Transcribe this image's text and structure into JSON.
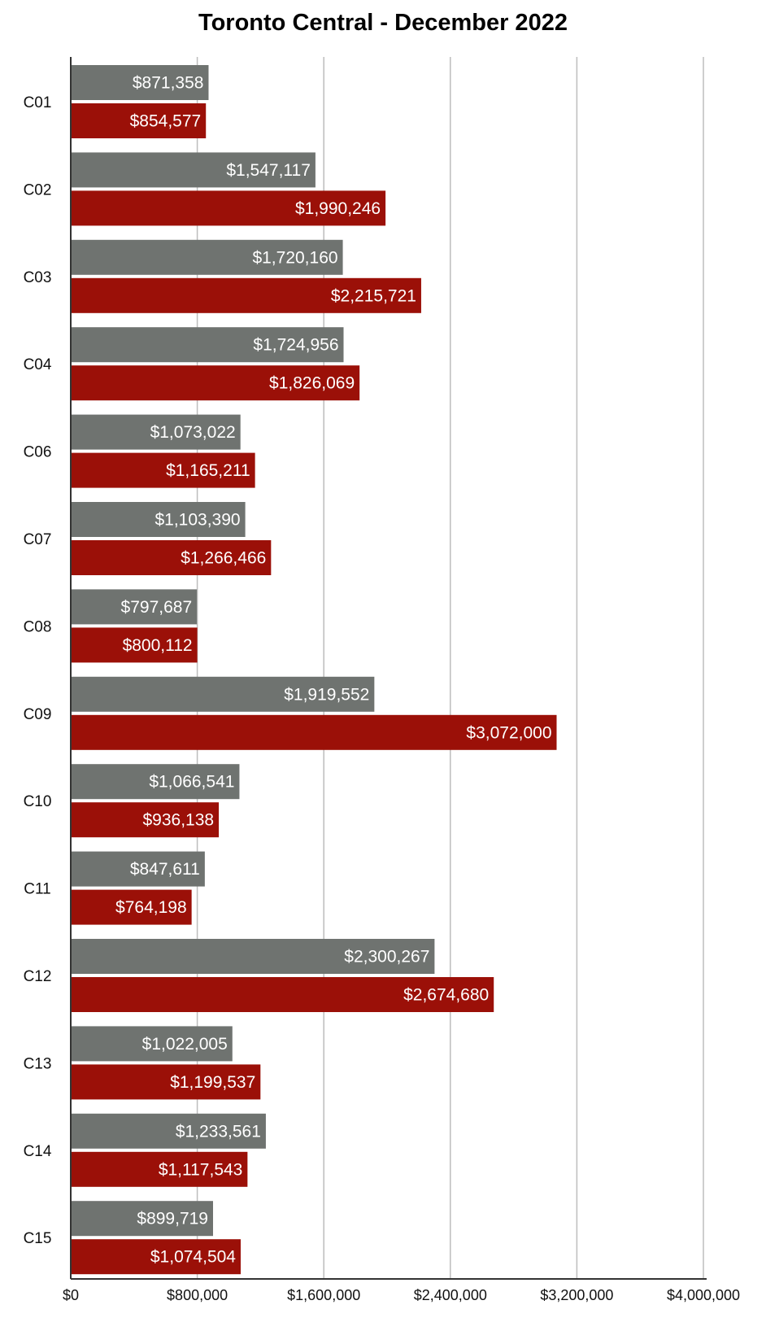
{
  "chart_data": {
    "type": "bar",
    "orientation": "horizontal",
    "title": "Toronto Central - December 2022",
    "xlabel": "",
    "ylabel": "",
    "xlim": [
      0,
      4000000
    ],
    "x_ticks": [
      0,
      800000,
      1600000,
      2400000,
      3200000,
      4000000
    ],
    "x_tick_labels": [
      "$0",
      "$800,000",
      "$1,600,000",
      "$2,400,000",
      "$3,200,000",
      "$4,000,000"
    ],
    "grid": "vertical",
    "categories": [
      "C01",
      "C02",
      "C03",
      "C04",
      "C06",
      "C07",
      "C08",
      "C09",
      "C10",
      "C11",
      "C12",
      "C13",
      "C14",
      "C15"
    ],
    "series": [
      {
        "color": "#6f7370",
        "values": [
          871358,
          1547117,
          1720160,
          1724956,
          1073022,
          1103390,
          797687,
          1919552,
          1066541,
          847611,
          2300267,
          1022005,
          1233561,
          899719
        ],
        "labels": [
          "$871,358",
          "$1,547,117",
          "$1,720,160",
          "$1,724,956",
          "$1,073,022",
          "$1,103,390",
          "$797,687",
          "$1,919,552",
          "$1,066,541",
          "$847,611",
          "$2,300,267",
          "$1,022,005",
          "$1,233,561",
          "$899,719"
        ]
      },
      {
        "color": "#9b1008",
        "values": [
          854577,
          1990246,
          2215721,
          1826069,
          1165211,
          1266466,
          800112,
          3072000,
          936138,
          764198,
          2674680,
          1199537,
          1117543,
          1074504
        ],
        "labels": [
          "$854,577",
          "$1,990,246",
          "$2,215,721",
          "$1,826,069",
          "$1,165,211",
          "$1,266,466",
          "$800,112",
          "$3,072,000",
          "$936,138",
          "$764,198",
          "$2,674,680",
          "$1,199,537",
          "$1,117,543",
          "$1,074,504"
        ]
      }
    ],
    "gridline_color": "#bdbdbd",
    "axis_color": "#333333"
  }
}
